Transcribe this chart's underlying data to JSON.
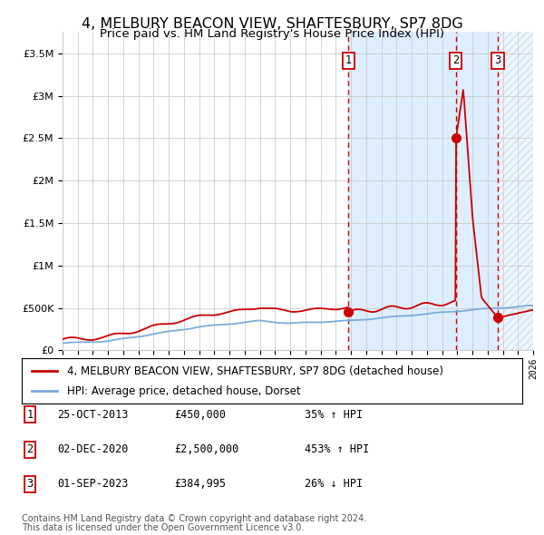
{
  "title": "4, MELBURY BEACON VIEW, SHAFTESBURY, SP7 8DG",
  "subtitle": "Price paid vs. HM Land Registry's House Price Index (HPI)",
  "legend_line1": "4, MELBURY BEACON VIEW, SHAFTESBURY, SP7 8DG (detached house)",
  "legend_line2": "HPI: Average price, detached house, Dorset",
  "footer1": "Contains HM Land Registry data © Crown copyright and database right 2024.",
  "footer2": "This data is licensed under the Open Government Licence v3.0.",
  "transactions": [
    {
      "label": "1",
      "date": "25-OCT-2013",
      "price": 450000,
      "hpi_pct": "35% ↑ HPI",
      "year": 2013.82
    },
    {
      "label": "2",
      "date": "02-DEC-2020",
      "price": 2500000,
      "hpi_pct": "453% ↑ HPI",
      "year": 2020.92
    },
    {
      "label": "3",
      "date": "01-SEP-2023",
      "price": 384995,
      "hpi_pct": "26% ↓ HPI",
      "year": 2023.67
    }
  ],
  "xmin": 1995,
  "xmax": 2026,
  "ymin": 0,
  "ymax": 3750000,
  "yticks": [
    0,
    500000,
    1000000,
    1500000,
    2000000,
    2500000,
    3000000,
    3500000
  ],
  "ytick_labels": [
    "£0",
    "£500K",
    "£1M",
    "£1.5M",
    "£2M",
    "£2.5M",
    "£3M",
    "£3.5M"
  ],
  "hpi_color": "#7aacdc",
  "price_color": "#cc0000",
  "bg_color": "#ffffff",
  "plot_bg": "#ffffff",
  "shade_color": "#ddeeff",
  "hatch_color": "#bbccdd",
  "grid_color": "#cccccc",
  "title_fontsize": 11.5,
  "subtitle_fontsize": 9.5,
  "tick_fontsize": 8,
  "legend_fontsize": 8.5,
  "footer_fontsize": 7
}
